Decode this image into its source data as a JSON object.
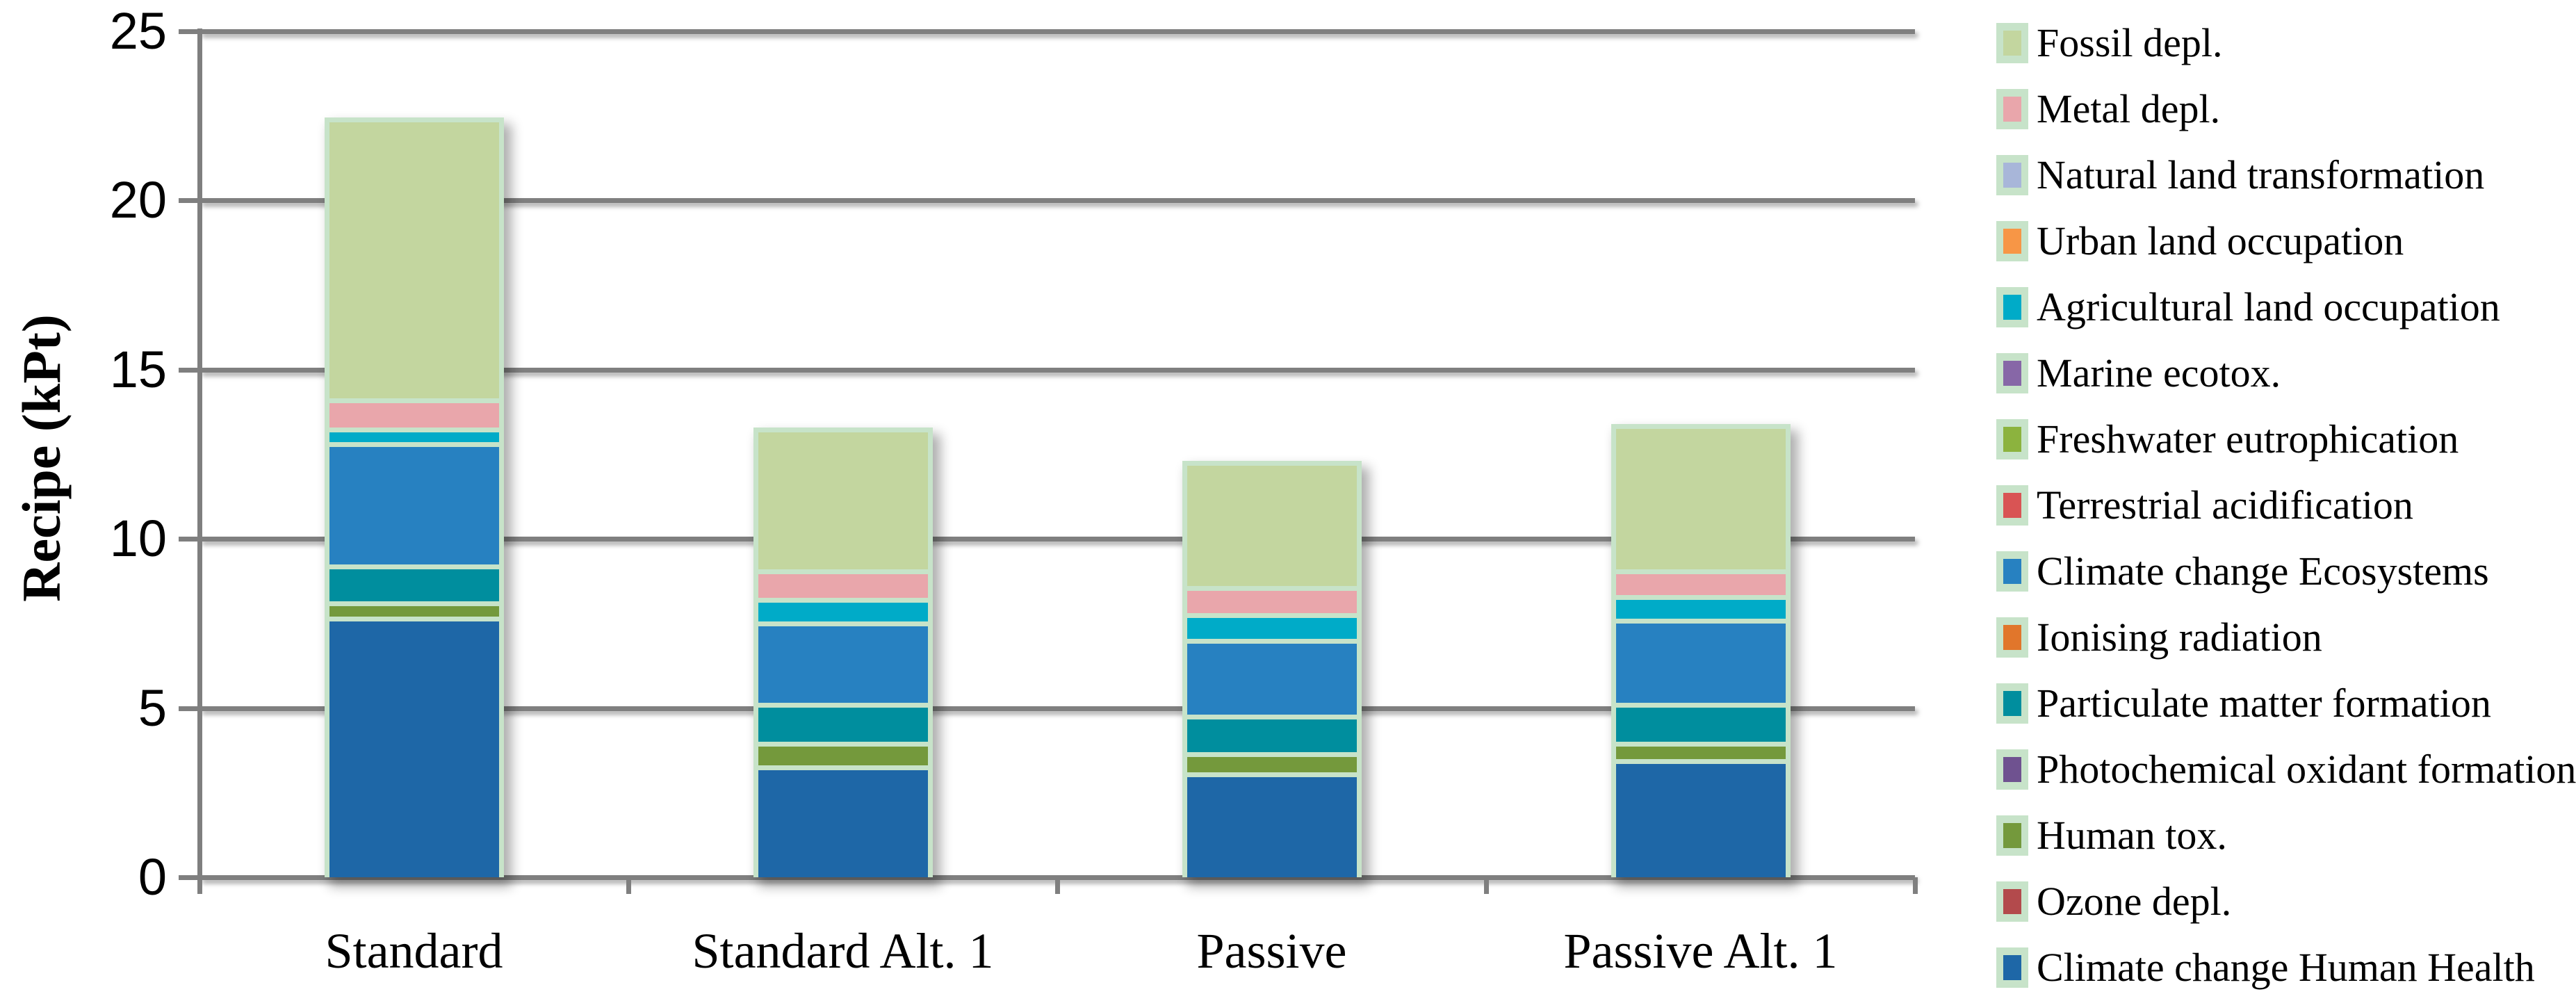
{
  "y_axis": {
    "title": "Recipe (kPt)",
    "ticks": [
      "0",
      "5",
      "10",
      "15",
      "20",
      "25"
    ]
  },
  "x_axis": {
    "categories": [
      "Standard",
      "Standard Alt. 1",
      "Passive",
      "Passive Alt. 1"
    ]
  },
  "colors": {
    "grid": "#7f7f7f",
    "bar_border": "#c7e3c9"
  },
  "legend": {
    "items": [
      {
        "label": "Fossil depl.",
        "color": "#c3d69f"
      },
      {
        "label": "Metal depl.",
        "color": "#e9a6ab"
      },
      {
        "label": "Natural land transformation",
        "color": "#a8b6d9"
      },
      {
        "label": "Urban land occupation",
        "color": "#f79646"
      },
      {
        "label": "Agricultural land occupation",
        "color": "#00abc8"
      },
      {
        "label": "Marine ecotox.",
        "color": "#8767a7"
      },
      {
        "label": "Freshwater eutrophication",
        "color": "#8cb33e"
      },
      {
        "label": "Terrestrial acidification",
        "color": "#d95454"
      },
      {
        "label": "Climate change Ecosystems",
        "color": "#2781c1"
      },
      {
        "label": "Ionising radiation",
        "color": "#e1762b"
      },
      {
        "label": "Particulate matter formation",
        "color": "#008e9e"
      },
      {
        "label": "Photochemical oxidant formation",
        "color": "#6f5290"
      },
      {
        "label": "Human tox.",
        "color": "#74993c"
      },
      {
        "label": "Ozone depl.",
        "color": "#b34a4c"
      },
      {
        "label": "Climate change Human Health",
        "color": "#1e67a7"
      }
    ]
  },
  "chart_data": {
    "type": "bar",
    "stacked": true,
    "title": "",
    "xlabel": "",
    "ylabel": "Recipe (kPt)",
    "ylim": [
      0,
      25
    ],
    "grid": "horizontal",
    "legend_position": "right",
    "categories": [
      "Standard",
      "Standard Alt. 1",
      "Passive",
      "Passive Alt. 1"
    ],
    "series_order": "bottom_to_top",
    "series": [
      {
        "name": "Climate change Human Health",
        "color": "#1e67a7",
        "values": [
          7.7,
          3.3,
          3.1,
          3.5
        ]
      },
      {
        "name": "Ozone depl.",
        "color": "#b34a4c",
        "values": [
          0,
          0,
          0,
          0
        ]
      },
      {
        "name": "Human tox.",
        "color": "#74993c",
        "values": [
          0.45,
          0.7,
          0.6,
          0.5
        ]
      },
      {
        "name": "Photochemical oxidant formation",
        "color": "#6f5290",
        "values": [
          0,
          0,
          0,
          0
        ]
      },
      {
        "name": "Particulate matter formation",
        "color": "#008e9e",
        "values": [
          1.1,
          1.15,
          1.1,
          1.15
        ]
      },
      {
        "name": "Ionising radiation",
        "color": "#e1762b",
        "values": [
          0,
          0,
          0,
          0
        ]
      },
      {
        "name": "Climate change Ecosystems",
        "color": "#2781c1",
        "values": [
          3.6,
          2.4,
          2.25,
          2.5
        ]
      },
      {
        "name": "Terrestrial acidification",
        "color": "#d95454",
        "values": [
          0,
          0,
          0,
          0
        ]
      },
      {
        "name": "Freshwater eutrophication",
        "color": "#8cb33e",
        "values": [
          0,
          0,
          0,
          0
        ]
      },
      {
        "name": "Marine ecotox.",
        "color": "#8767a7",
        "values": [
          0,
          0,
          0,
          0
        ]
      },
      {
        "name": "Agricultural land occupation",
        "color": "#00abc8",
        "values": [
          0.45,
          0.7,
          0.75,
          0.7
        ]
      },
      {
        "name": "Urban land occupation",
        "color": "#f79646",
        "values": [
          0,
          0,
          0,
          0
        ]
      },
      {
        "name": "Natural land transformation",
        "color": "#a8b6d9",
        "values": [
          0,
          0,
          0,
          0
        ]
      },
      {
        "name": "Metal depl.",
        "color": "#e9a6ab",
        "values": [
          0.85,
          0.85,
          0.8,
          0.75
        ]
      },
      {
        "name": "Fossil depl.",
        "color": "#c3d69f",
        "values": [
          8.3,
          4.2,
          3.7,
          4.3
        ]
      }
    ],
    "totals": [
      22.45,
      13.3,
      12.3,
      13.4
    ]
  }
}
